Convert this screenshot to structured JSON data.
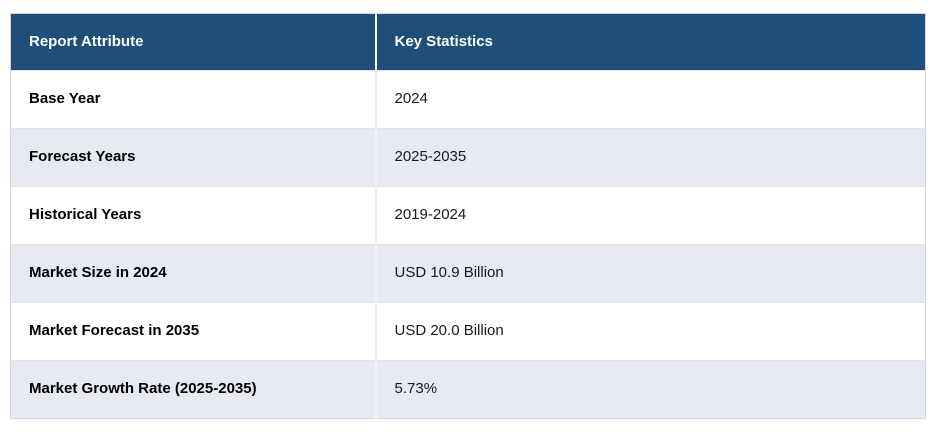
{
  "chart_data": {
    "type": "table",
    "title": "Report Attribute / Key Statistics summary table",
    "columns": [
      "Report Attribute",
      "Key Statistics"
    ],
    "rows": [
      {
        "attribute": "Base Year",
        "value": "2024"
      },
      {
        "attribute": "Forecast Years",
        "value": "2025-2035"
      },
      {
        "attribute": "Historical Years",
        "value": "2019-2024"
      },
      {
        "attribute": "Market Size in 2024",
        "value": "USD 10.9 Billion"
      },
      {
        "attribute": "Market Forecast in 2035",
        "value": "USD 20.0 Billion"
      },
      {
        "attribute": "Market Growth Rate (2025-2035)",
        "value": "5.73%"
      }
    ],
    "layout_hints": {
      "striped_rows": true,
      "stripe_on": "even body rows (2nd, 4th, 6th)",
      "header_position": "top"
    }
  },
  "colors": {
    "header_bg": "#1f4e79",
    "header_text": "#ffffff",
    "row_bg": "#ffffff",
    "row_alt_bg": "#e7e9f3",
    "attribute_text": "#000000",
    "value_text": "#1a1a1a",
    "outer_border": "#d4d6da",
    "cell_divider": "#f1f1f1"
  }
}
